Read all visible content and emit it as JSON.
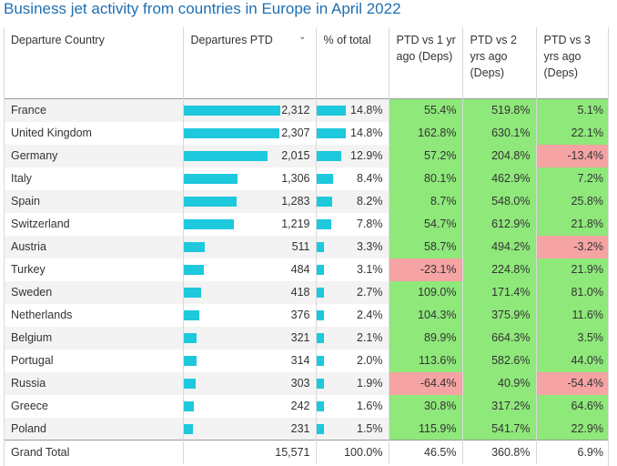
{
  "title": "Business jet activity from countries in Europe in April 2022",
  "headers": {
    "country": "Departure Country",
    "departures": "Departures PTD",
    "pct_total": "% of total",
    "vs1": "PTD vs 1 yr ago (Deps)",
    "vs2": "PTD vs 2 yrs ago (Deps)",
    "vs3": "PTD vs 3 yrs ago (Deps)"
  },
  "sort_icon": "chevron-down-icon",
  "colors": {
    "bar": "#1ec8dd",
    "positive": "#8ee87a",
    "negative": "#f5a3a3",
    "title": "#1f6fb2"
  },
  "max_departures": 2312,
  "rows": [
    {
      "country": "France",
      "departures": 2312,
      "departures_text": "2,312",
      "pct": "14.8%",
      "pct_value": 14.8,
      "vs1": "55.4%",
      "vs2": "519.8%",
      "vs3": "5.1%"
    },
    {
      "country": "United Kingdom",
      "departures": 2307,
      "departures_text": "2,307",
      "pct": "14.8%",
      "pct_value": 14.8,
      "vs1": "162.8%",
      "vs2": "630.1%",
      "vs3": "22.1%"
    },
    {
      "country": "Germany",
      "departures": 2015,
      "departures_text": "2,015",
      "pct": "12.9%",
      "pct_value": 12.9,
      "vs1": "57.2%",
      "vs2": "204.8%",
      "vs3": "-13.4%"
    },
    {
      "country": "Italy",
      "departures": 1306,
      "departures_text": "1,306",
      "pct": "8.4%",
      "pct_value": 8.4,
      "vs1": "80.1%",
      "vs2": "462.9%",
      "vs3": "7.2%"
    },
    {
      "country": "Spain",
      "departures": 1283,
      "departures_text": "1,283",
      "pct": "8.2%",
      "pct_value": 8.2,
      "vs1": "8.7%",
      "vs2": "548.0%",
      "vs3": "25.8%"
    },
    {
      "country": "Switzerland",
      "departures": 1219,
      "departures_text": "1,219",
      "pct": "7.8%",
      "pct_value": 7.8,
      "vs1": "54.7%",
      "vs2": "612.9%",
      "vs3": "21.8%"
    },
    {
      "country": "Austria",
      "departures": 511,
      "departures_text": "511",
      "pct": "3.3%",
      "pct_value": 3.3,
      "vs1": "58.7%",
      "vs2": "494.2%",
      "vs3": "-3.2%"
    },
    {
      "country": "Turkey",
      "departures": 484,
      "departures_text": "484",
      "pct": "3.1%",
      "pct_value": 3.1,
      "vs1": "-23.1%",
      "vs2": "224.8%",
      "vs3": "21.9%"
    },
    {
      "country": "Sweden",
      "departures": 418,
      "departures_text": "418",
      "pct": "2.7%",
      "pct_value": 2.7,
      "vs1": "109.0%",
      "vs2": "171.4%",
      "vs3": "81.0%"
    },
    {
      "country": "Netherlands",
      "departures": 376,
      "departures_text": "376",
      "pct": "2.4%",
      "pct_value": 2.4,
      "vs1": "104.3%",
      "vs2": "375.9%",
      "vs3": "11.6%"
    },
    {
      "country": "Belgium",
      "departures": 321,
      "departures_text": "321",
      "pct": "2.1%",
      "pct_value": 2.1,
      "vs1": "89.9%",
      "vs2": "664.3%",
      "vs3": "3.5%"
    },
    {
      "country": "Portugal",
      "departures": 314,
      "departures_text": "314",
      "pct": "2.0%",
      "pct_value": 2.0,
      "vs1": "113.6%",
      "vs2": "582.6%",
      "vs3": "44.0%"
    },
    {
      "country": "Russia",
      "departures": 303,
      "departures_text": "303",
      "pct": "1.9%",
      "pct_value": 1.9,
      "vs1": "-64.4%",
      "vs2": "40.9%",
      "vs3": "-54.4%"
    },
    {
      "country": "Greece",
      "departures": 242,
      "departures_text": "242",
      "pct": "1.6%",
      "pct_value": 1.6,
      "vs1": "30.8%",
      "vs2": "317.2%",
      "vs3": "64.6%"
    },
    {
      "country": "Poland",
      "departures": 231,
      "departures_text": "231",
      "pct": "1.5%",
      "pct_value": 1.5,
      "vs1": "115.9%",
      "vs2": "541.7%",
      "vs3": "22.9%"
    }
  ],
  "total": {
    "label": "Grand Total",
    "departures": "15,571",
    "pct": "100.0%",
    "vs1": "46.5%",
    "vs2": "360.8%",
    "vs3": "6.9%"
  }
}
